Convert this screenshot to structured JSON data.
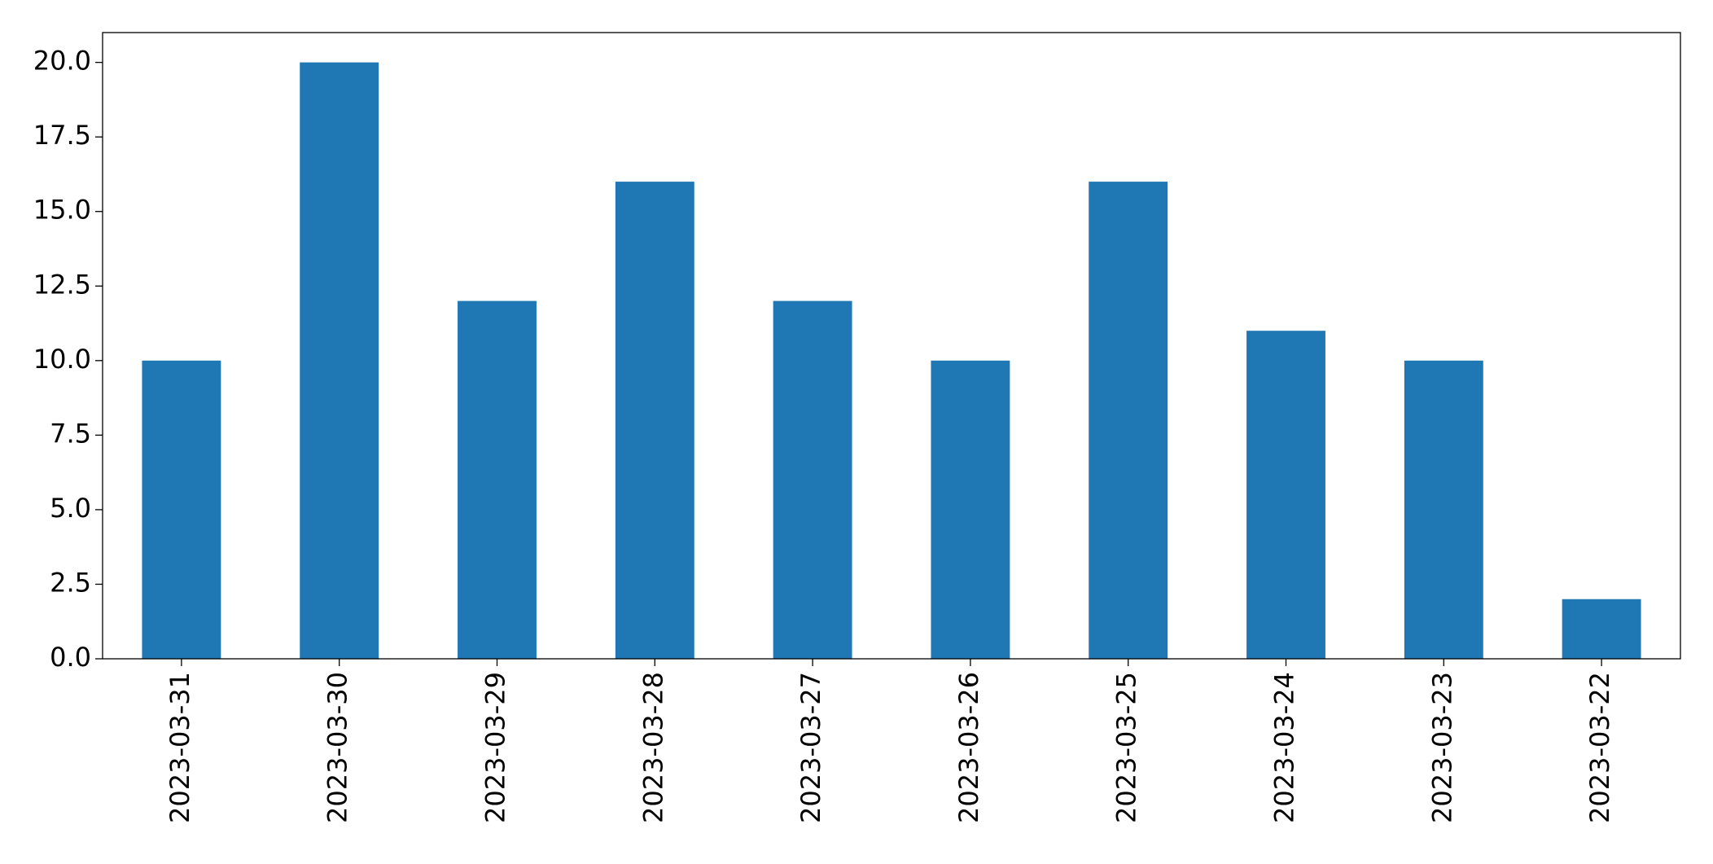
{
  "chart_data": {
    "type": "bar",
    "categories": [
      "2023-03-31",
      "2023-03-30",
      "2023-03-29",
      "2023-03-28",
      "2023-03-27",
      "2023-03-26",
      "2023-03-25",
      "2023-03-24",
      "2023-03-23",
      "2023-03-22"
    ],
    "values": [
      10,
      20,
      12,
      16,
      12,
      10,
      16,
      11,
      10,
      2
    ],
    "color": "#1f77b4",
    "ylim": [
      0,
      21
    ],
    "yticks": [
      {
        "value": 0,
        "label": "0.0"
      },
      2.5,
      {
        "value": 5,
        "label": "5.0"
      },
      7.5,
      {
        "value": 10,
        "label": "10.0"
      },
      12.5,
      {
        "value": 15,
        "label": "15.0"
      },
      17.5,
      {
        "value": 20,
        "label": "20.0"
      }
    ],
    "grid": false
  }
}
